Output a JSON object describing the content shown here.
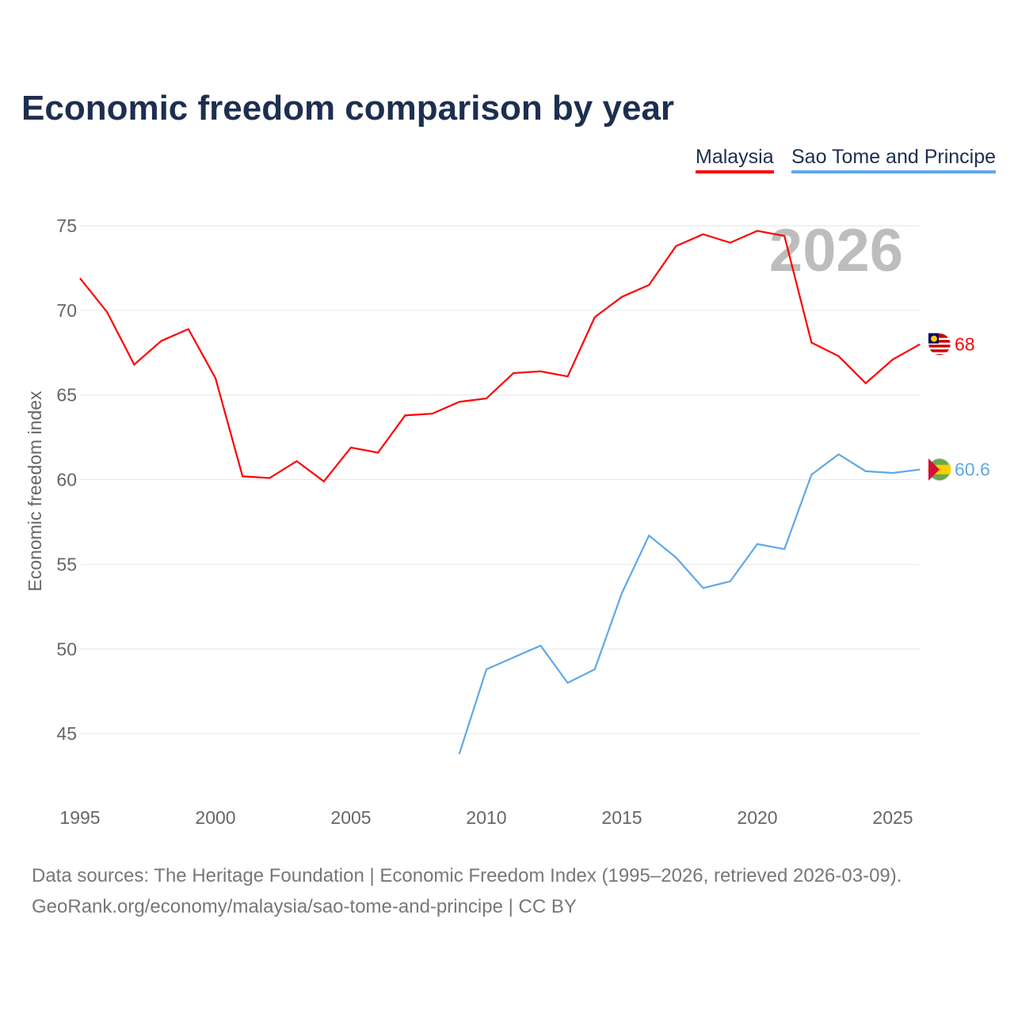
{
  "chart_data": {
    "type": "line",
    "title": "Economic freedom comparison by year",
    "xlabel": "",
    "ylabel": "Economic freedom index",
    "xlim": [
      1995,
      2026
    ],
    "ylim": [
      42.5,
      77
    ],
    "xticks": [
      1995,
      2000,
      2005,
      2010,
      2015,
      2020,
      2025
    ],
    "yticks": [
      45,
      50,
      55,
      60,
      65,
      70,
      75
    ],
    "grid": true,
    "legend_position": "top-right",
    "year_watermark": "2026",
    "series": [
      {
        "name": "Malaysia",
        "color": "#ff0000",
        "end_label": "68",
        "x": [
          1995,
          1996,
          1997,
          1998,
          1999,
          2000,
          2001,
          2002,
          2003,
          2004,
          2005,
          2006,
          2007,
          2008,
          2009,
          2010,
          2011,
          2012,
          2013,
          2014,
          2015,
          2016,
          2017,
          2018,
          2019,
          2020,
          2021,
          2022,
          2023,
          2024,
          2025,
          2026
        ],
        "y": [
          71.9,
          69.9,
          66.8,
          68.2,
          68.9,
          66.0,
          60.2,
          60.1,
          61.1,
          59.9,
          61.9,
          61.6,
          63.8,
          63.9,
          64.6,
          64.8,
          66.3,
          66.4,
          66.1,
          69.6,
          70.8,
          71.5,
          73.8,
          74.5,
          74.0,
          74.7,
          74.4,
          68.1,
          67.3,
          65.7,
          67.1,
          68.0
        ]
      },
      {
        "name": "Sao Tome and Principe",
        "color": "#5fa8e8",
        "end_label": "60.6",
        "x": [
          2009,
          2010,
          2011,
          2012,
          2013,
          2014,
          2015,
          2016,
          2017,
          2018,
          2019,
          2020,
          2021,
          2022,
          2023,
          2024,
          2025,
          2026
        ],
        "y": [
          43.8,
          48.8,
          49.5,
          50.2,
          48.0,
          48.8,
          53.3,
          56.7,
          55.4,
          53.6,
          54.0,
          56.2,
          55.9,
          60.3,
          61.5,
          60.5,
          60.4,
          60.6
        ]
      }
    ]
  },
  "footer": {
    "line1": "Data sources: The Heritage Foundation | Economic Freedom Index (1995–2026, retrieved 2026-03-09).",
    "line2": "GeoRank.org/economy/malaysia/sao-tome-and-principe | CC BY"
  }
}
